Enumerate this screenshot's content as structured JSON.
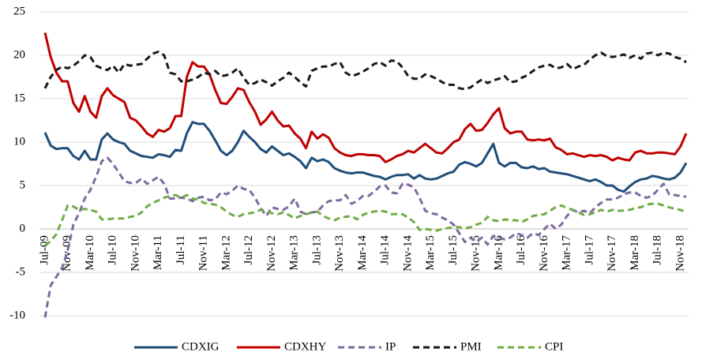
{
  "chart_data": {
    "type": "line",
    "categories": [
      "Jul-09",
      null,
      null,
      null,
      "Nov-09",
      null,
      null,
      null,
      "Mar-10",
      null,
      null,
      null,
      "Jul-10",
      null,
      null,
      null,
      "Nov-10",
      null,
      null,
      null,
      "Mar-11",
      null,
      null,
      null,
      "Jul-11",
      null,
      null,
      null,
      "Nov-11",
      null,
      null,
      null,
      "Mar-12",
      null,
      null,
      null,
      "Jul-12",
      null,
      null,
      null,
      "Nov-12",
      null,
      null,
      null,
      "Mar-13",
      null,
      null,
      null,
      "Jul-13",
      null,
      null,
      null,
      "Nov-13",
      null,
      null,
      null,
      "Mar-14",
      null,
      null,
      null,
      "Jul-14",
      null,
      null,
      null,
      "Nov-14",
      null,
      null,
      null,
      "Mar-15",
      null,
      null,
      null,
      "Jul-15",
      null,
      null,
      null,
      "Nov-15",
      null,
      null,
      null,
      "Mar-16",
      null,
      null,
      null,
      "Jul-16",
      null,
      null,
      null,
      "Nov-16",
      null,
      null,
      null,
      "Mar-17",
      null,
      null,
      null,
      "Jul-17",
      null,
      null,
      null,
      "Nov-17",
      null,
      null,
      null,
      "Mar-18",
      null,
      null,
      null,
      "Jul-18",
      null,
      null,
      null,
      "Nov-18",
      null
    ],
    "series": [
      {
        "name": "CDXIG",
        "color": "#1f4e79",
        "dash": false,
        "values": [
          11.1,
          9.6,
          9.2,
          9.3,
          9.3,
          8.4,
          8.0,
          9.0,
          8.0,
          8.0,
          10.3,
          11.0,
          10.3,
          10.0,
          9.8,
          9.0,
          8.7,
          8.4,
          8.3,
          8.2,
          8.6,
          8.5,
          8.3,
          9.1,
          9.0,
          11.0,
          12.3,
          12.1,
          12.1,
          11.3,
          10.2,
          9.0,
          8.5,
          9.0,
          10.0,
          11.3,
          10.6,
          10.0,
          9.2,
          8.8,
          9.5,
          9.0,
          8.5,
          8.7,
          8.3,
          7.8,
          7.0,
          8.2,
          7.8,
          8.0,
          7.7,
          7.0,
          6.7,
          6.5,
          6.4,
          6.5,
          6.5,
          6.3,
          6.1,
          6.0,
          5.7,
          6.0,
          6.2,
          6.2,
          6.3,
          5.8,
          6.2,
          5.8,
          5.7,
          5.8,
          6.1,
          6.4,
          6.6,
          7.4,
          7.7,
          7.5,
          7.2,
          7.6,
          8.7,
          9.8,
          7.6,
          7.2,
          7.6,
          7.6,
          7.1,
          7.0,
          7.2,
          6.9,
          7.0,
          6.6,
          6.5,
          6.4,
          6.3,
          6.1,
          5.9,
          5.7,
          5.5,
          5.7,
          5.4,
          5.0,
          5.0,
          4.5,
          4.3,
          4.9,
          5.4,
          5.7,
          5.8,
          6.1,
          6.0,
          5.8,
          5.7,
          5.9,
          6.5,
          7.6
        ]
      },
      {
        "name": "CDXHY",
        "color": "#c00000",
        "dash": false,
        "values": [
          22.6,
          19.8,
          18.0,
          17.0,
          17.0,
          14.5,
          13.5,
          15.3,
          13.5,
          12.8,
          15.3,
          16.2,
          15.4,
          15.0,
          14.6,
          12.8,
          12.5,
          11.8,
          11.0,
          10.6,
          11.4,
          11.2,
          11.6,
          13.0,
          13.0,
          17.5,
          19.2,
          18.7,
          18.7,
          17.8,
          16.0,
          14.5,
          14.4,
          15.2,
          16.2,
          16.0,
          14.6,
          13.5,
          12.0,
          12.6,
          13.5,
          12.5,
          11.8,
          11.9,
          11.0,
          10.4,
          9.3,
          11.2,
          10.4,
          10.9,
          10.5,
          9.3,
          8.8,
          8.5,
          8.4,
          8.6,
          8.6,
          8.5,
          8.5,
          8.4,
          7.7,
          8.0,
          8.4,
          8.6,
          9.0,
          8.8,
          9.3,
          9.8,
          9.3,
          8.8,
          8.7,
          9.3,
          10.0,
          10.3,
          11.5,
          12.1,
          11.3,
          11.4,
          12.2,
          13.2,
          13.9,
          11.6,
          11.0,
          11.2,
          11.2,
          10.3,
          10.2,
          10.3,
          10.2,
          10.4,
          9.4,
          9.1,
          8.6,
          8.7,
          8.5,
          8.3,
          8.5,
          8.4,
          8.5,
          8.3,
          7.9,
          8.2,
          8.0,
          7.9,
          8.8,
          9.0,
          8.7,
          8.7,
          8.8,
          8.8,
          8.7,
          8.6,
          9.5,
          11.0
        ]
      },
      {
        "name": "IP",
        "color": "#7f6a9f",
        "dash": true,
        "values": [
          -10.2,
          -6.5,
          -5.5,
          -4.5,
          -2.5,
          0.5,
          1.8,
          3.5,
          4.5,
          6.0,
          7.8,
          8.2,
          7.5,
          6.5,
          5.5,
          5.3,
          5.3,
          5.8,
          5.2,
          5.6,
          6.0,
          5.2,
          3.5,
          3.5,
          3.6,
          3.5,
          3.2,
          3.6,
          3.7,
          3.3,
          3.4,
          4.2,
          4.0,
          4.4,
          5.0,
          4.6,
          4.5,
          3.6,
          2.4,
          1.5,
          2.5,
          2.3,
          2.2,
          2.6,
          3.5,
          2.0,
          1.7,
          1.9,
          2.0,
          2.7,
          3.2,
          3.3,
          3.3,
          3.9,
          2.9,
          3.2,
          3.8,
          3.8,
          4.3,
          4.9,
          5.0,
          4.2,
          4.1,
          5.2,
          5.1,
          4.8,
          3.6,
          2.1,
          1.8,
          1.7,
          1.3,
          1.0,
          0.5,
          -0.5,
          -1.5,
          -1.0,
          -1.5,
          -1.0,
          -1.8,
          -0.8,
          -1.0,
          -1.2,
          -1.0,
          -0.5,
          -0.7,
          -1.0,
          -0.5,
          -0.7,
          0.0,
          0.6,
          0.0,
          0.5,
          1.5,
          2.2,
          1.9,
          2.1,
          1.8,
          2.5,
          3.0,
          3.4,
          3.4,
          3.6,
          4.0,
          4.2,
          4.2,
          3.8,
          3.6,
          3.8,
          4.5,
          5.2,
          4.0,
          3.9,
          3.8,
          3.7
        ]
      },
      {
        "name": "PMI",
        "color": "#1a1a1a",
        "dash": true,
        "values": [
          16.2,
          17.5,
          18.3,
          18.7,
          18.5,
          18.8,
          19.3,
          20.0,
          19.8,
          18.8,
          18.5,
          18.3,
          18.8,
          18.0,
          19.0,
          18.8,
          18.9,
          19.0,
          19.6,
          20.2,
          20.4,
          20.0,
          18.0,
          17.8,
          17.0,
          17.0,
          17.2,
          17.5,
          18.0,
          17.8,
          18.2,
          17.6,
          17.7,
          18.0,
          18.5,
          17.4,
          16.6,
          16.8,
          17.2,
          16.9,
          16.5,
          17.0,
          17.4,
          18.0,
          17.5,
          16.9,
          16.4,
          18.2,
          18.5,
          18.7,
          18.7,
          19.0,
          19.2,
          18.0,
          17.6,
          17.8,
          18.1,
          18.5,
          19.0,
          19.2,
          18.8,
          19.4,
          19.3,
          18.6,
          17.6,
          17.3,
          17.3,
          17.8,
          17.6,
          17.3,
          16.9,
          16.6,
          16.6,
          16.2,
          16.1,
          16.3,
          16.8,
          17.2,
          16.8,
          17.1,
          17.3,
          17.6,
          16.9,
          17.0,
          17.4,
          17.7,
          18.2,
          18.6,
          18.8,
          18.9,
          18.5,
          18.6,
          19.0,
          18.4,
          18.7,
          18.9,
          19.5,
          20.0,
          20.3,
          19.9,
          19.8,
          19.9,
          20.1,
          19.7,
          20.0,
          19.6,
          20.2,
          20.3,
          20.0,
          20.3,
          20.2,
          19.8,
          19.6,
          19.2
        ]
      },
      {
        "name": "CPI",
        "color": "#70ad47",
        "dash": true,
        "values": [
          -1.9,
          -1.4,
          -0.6,
          1.0,
          2.7,
          2.6,
          2.2,
          2.3,
          2.2,
          2.0,
          1.1,
          1.1,
          1.2,
          1.2,
          1.2,
          1.4,
          1.5,
          1.9,
          2.6,
          3.0,
          3.3,
          3.6,
          3.8,
          3.9,
          3.6,
          3.9,
          3.5,
          3.4,
          3.0,
          2.9,
          2.8,
          2.5,
          2.0,
          1.6,
          1.4,
          1.7,
          1.8,
          1.9,
          2.2,
          2.1,
          1.8,
          1.7,
          1.9,
          1.6,
          1.2,
          1.5,
          1.7,
          1.9,
          2.0,
          1.5,
          1.2,
          1.0,
          1.3,
          1.4,
          1.5,
          1.1,
          1.6,
          1.9,
          2.0,
          2.1,
          2.0,
          1.7,
          1.7,
          1.7,
          1.3,
          0.8,
          -0.1,
          0.0,
          -0.1,
          -0.2,
          0.0,
          0.1,
          0.2,
          0.2,
          0.1,
          0.2,
          0.5,
          0.7,
          1.4,
          1.0,
          0.9,
          1.1,
          1.0,
          1.0,
          0.8,
          1.1,
          1.5,
          1.6,
          1.7,
          2.1,
          2.5,
          2.7,
          2.4,
          2.2,
          1.9,
          1.6,
          1.7,
          1.9,
          2.2,
          2.0,
          2.2,
          2.1,
          2.1,
          2.2,
          2.4,
          2.5,
          2.8,
          2.9,
          2.9,
          2.7,
          2.5,
          2.3,
          2.2,
          1.9
        ]
      }
    ],
    "ylim": [
      -10,
      25
    ],
    "yticks": [
      -10,
      -5,
      0,
      5,
      10,
      15,
      20,
      25
    ],
    "grid": true,
    "legend": "bottom"
  }
}
